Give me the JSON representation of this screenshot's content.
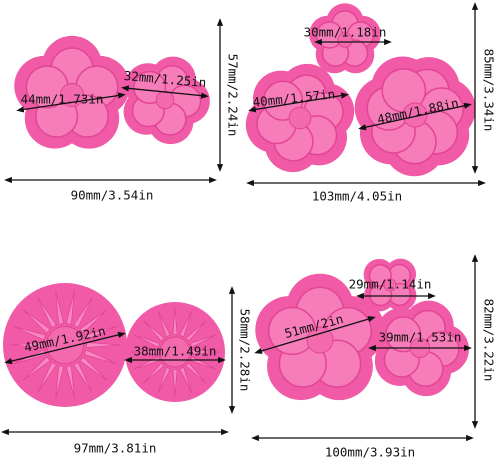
{
  "panels": [
    {
      "items": [
        "44mm/1.73in",
        "32mm/1.25in"
      ],
      "height": "57mm/2.24in",
      "width": "90mm/3.54in"
    },
    {
      "items": [
        "30mm/1.18in",
        "40mm/1.57in",
        "48mm/1.88in"
      ],
      "height": "85mm/3.34in",
      "width": "103mm/4.05in"
    },
    {
      "items": [
        "49mm/1.92in",
        "38mm/1.49in"
      ],
      "height": "58mm/2.28in",
      "width": "97mm/3.81in"
    },
    {
      "items": [
        "29mm/1.14in",
        "51mm/2in",
        "39mm/1.53in"
      ],
      "height": "82mm/3.22in",
      "width": "100mm/3.93in"
    }
  ]
}
